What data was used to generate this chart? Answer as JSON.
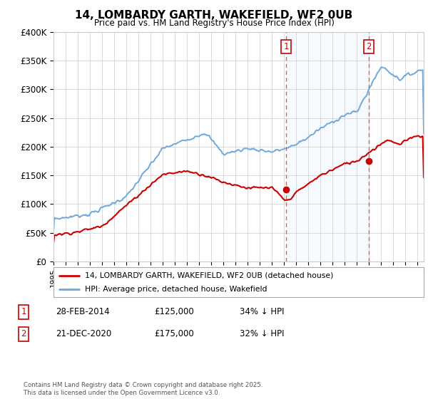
{
  "title": "14, LOMBARDY GARTH, WAKEFIELD, WF2 0UB",
  "subtitle": "Price paid vs. HM Land Registry's House Price Index (HPI)",
  "legend_line1": "14, LOMBARDY GARTH, WAKEFIELD, WF2 0UB (detached house)",
  "legend_line2": "HPI: Average price, detached house, Wakefield",
  "footer": "Contains HM Land Registry data © Crown copyright and database right 2025.\nThis data is licensed under the Open Government Licence v3.0.",
  "table_rows": [
    {
      "num": "1",
      "date": "28-FEB-2014",
      "price": "£125,000",
      "hpi": "34% ↓ HPI"
    },
    {
      "num": "2",
      "date": "21-DEC-2020",
      "price": "£175,000",
      "hpi": "32% ↓ HPI"
    }
  ],
  "vline1_x": 2014.163,
  "vline2_x": 2020.972,
  "marker1_price_y": 125000,
  "marker2_price_y": 175000,
  "hpi_color": "#6fa8dc",
  "price_color": "#cc0000",
  "vline_color": "#e06060",
  "highlight_color": "#ddeeff",
  "ylim": [
    0,
    400000
  ],
  "xlim_start": 1995,
  "xlim_end": 2025.5,
  "background_color": "#ffffff",
  "grid_color": "#cccccc",
  "yticks": [
    0,
    50000,
    100000,
    150000,
    200000,
    250000,
    300000,
    350000,
    400000
  ],
  "ylabels": [
    "£0",
    "£50K",
    "£100K",
    "£150K",
    "£200K",
    "£250K",
    "£300K",
    "£350K",
    "£400K"
  ]
}
